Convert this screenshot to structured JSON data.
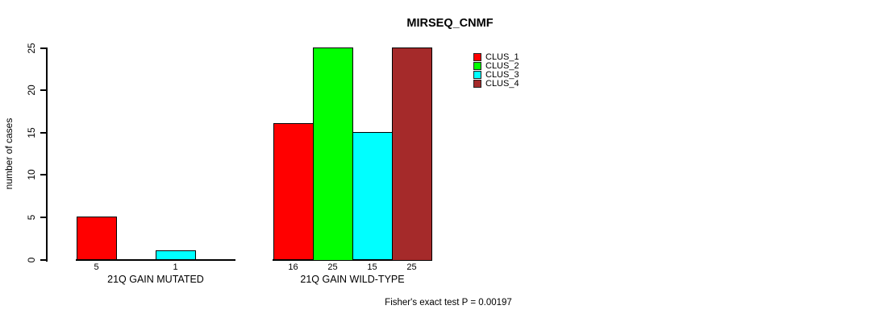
{
  "chart_data": {
    "type": "bar",
    "title": "MIRSEQ_CNMF",
    "ylabel": "number of cases",
    "ylim": [
      0,
      25
    ],
    "yticks": [
      0,
      5,
      10,
      15,
      20,
      25
    ],
    "grid": false,
    "legend_position": "top-right",
    "series": [
      {
        "name": "CLUS_1",
        "color": "#FF0000"
      },
      {
        "name": "CLUS_2",
        "color": "#00FF00"
      },
      {
        "name": "CLUS_3",
        "color": "#00FFFF"
      },
      {
        "name": "CLUS_4",
        "color": "#A52A2A"
      }
    ],
    "groups": [
      {
        "label": "21Q GAIN MUTATED",
        "values": [
          5,
          0,
          1,
          0
        ]
      },
      {
        "label": "21Q GAIN WILD-TYPE",
        "values": [
          16,
          25,
          15,
          25
        ]
      }
    ],
    "footnote": "Fisher's exact test P = 0.00197"
  }
}
